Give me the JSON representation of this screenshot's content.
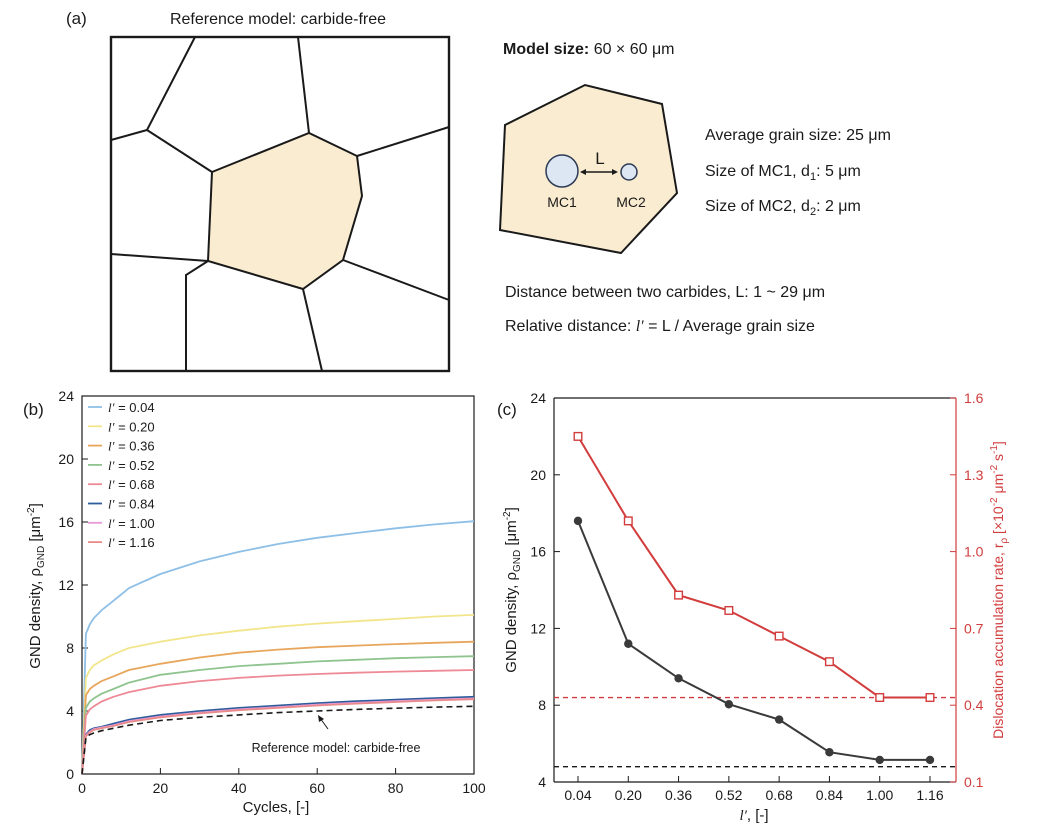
{
  "panel_a": {
    "label": "(a)",
    "caption": "Reference model: carbide-free",
    "model_size_bold": "Model size:",
    "model_size_value": "60 × 60 μm",
    "L_label": "L",
    "mc1": "MC1",
    "mc2": "MC2",
    "avg_grain": "Average grain size: 25 μm",
    "mc1_size_pre": "Size of MC1, d",
    "mc1_size_sub": "1",
    "mc1_size_post": ": 5 μm",
    "mc2_size_pre": "Size of MC2, d",
    "mc2_size_sub": "2",
    "mc2_size_post": ": 2 μm",
    "distance": "Distance between two carbides, L: 1 ~ 29 μm",
    "rel_pre": "Relative distance: ",
    "rel_var": "l′",
    "rel_post": " = L / Average grain size",
    "colors": {
      "grain_fill": "#faecd0",
      "carbide_fill": "#dde6f3",
      "carbide_stroke": "#2b3a55"
    }
  },
  "chart_data": [
    {
      "type": "line",
      "panel_label": "(b)",
      "xlabel": "Cycles, [-]",
      "ylabel_pre": "GND density, ρ",
      "ylabel_sub": "GND",
      "ylabel_post": " [μm",
      "ylabel_sup": "-2",
      "ylabel_end": "]",
      "xlim": [
        0,
        100
      ],
      "ylim": [
        0,
        24
      ],
      "xticks": [
        0,
        20,
        40,
        60,
        80,
        100
      ],
      "yticks": [
        0,
        4,
        8,
        12,
        16,
        20,
        24
      ],
      "legend_var": "l′",
      "x": [
        0,
        1,
        2,
        3,
        5,
        8,
        12,
        20,
        30,
        40,
        50,
        60,
        70,
        80,
        90,
        100
      ],
      "series": [
        {
          "name": "= 0.04",
          "color": "#8ebfe6",
          "values": [
            0,
            8.9,
            9.5,
            9.9,
            10.4,
            11.0,
            11.8,
            12.7,
            13.5,
            14.1,
            14.6,
            15.0,
            15.3,
            15.6,
            15.85,
            16.05
          ]
        },
        {
          "name": "= 0.20",
          "color": "#f2e58c",
          "values": [
            0,
            6.1,
            6.6,
            6.9,
            7.2,
            7.6,
            8.0,
            8.4,
            8.8,
            9.1,
            9.35,
            9.55,
            9.7,
            9.85,
            10.0,
            10.1
          ]
        },
        {
          "name": "= 0.36",
          "color": "#e8a65c",
          "values": [
            0,
            5.0,
            5.4,
            5.6,
            5.9,
            6.2,
            6.6,
            7.0,
            7.4,
            7.7,
            7.9,
            8.05,
            8.15,
            8.25,
            8.33,
            8.4
          ]
        },
        {
          "name": "= 0.52",
          "color": "#8fc48f",
          "values": [
            0,
            4.2,
            4.6,
            4.8,
            5.1,
            5.4,
            5.8,
            6.3,
            6.6,
            6.85,
            7.0,
            7.15,
            7.25,
            7.35,
            7.42,
            7.48
          ]
        },
        {
          "name": "= 0.68",
          "color": "#ee8a96",
          "values": [
            0,
            3.7,
            4.1,
            4.3,
            4.6,
            4.9,
            5.2,
            5.6,
            5.9,
            6.1,
            6.25,
            6.35,
            6.43,
            6.5,
            6.55,
            6.6
          ]
        },
        {
          "name": "= 0.84",
          "color": "#2f5d9c",
          "values": [
            0,
            2.5,
            2.8,
            2.9,
            3.0,
            3.2,
            3.45,
            3.75,
            4.0,
            4.2,
            4.35,
            4.5,
            4.62,
            4.72,
            4.82,
            4.9
          ]
        },
        {
          "name": "= 1.00",
          "color": "#e89ad8",
          "values": [
            0,
            2.45,
            2.7,
            2.85,
            2.95,
            3.1,
            3.35,
            3.65,
            3.9,
            4.1,
            4.25,
            4.4,
            4.52,
            4.62,
            4.72,
            4.8
          ]
        },
        {
          "name": "= 1.16",
          "color": "#e98a8a",
          "values": [
            0,
            2.4,
            2.65,
            2.8,
            2.9,
            3.05,
            3.3,
            3.6,
            3.85,
            4.05,
            4.2,
            4.35,
            4.47,
            4.57,
            4.67,
            4.75
          ]
        },
        {
          "name": "Reference model: carbide-free",
          "color": "#1a1a1a",
          "dashed": true,
          "values": [
            0,
            2.3,
            2.5,
            2.6,
            2.75,
            2.9,
            3.1,
            3.4,
            3.6,
            3.75,
            3.9,
            4.0,
            4.1,
            4.18,
            4.25,
            4.3
          ]
        }
      ],
      "annotation": "Reference model: carbide-free"
    },
    {
      "type": "line",
      "panel_label": "(c)",
      "xlabel_var": "l′",
      "xlabel_post": ", [-]",
      "categories": [
        "0.04",
        "0.20",
        "0.36",
        "0.52",
        "0.68",
        "0.84",
        "1.00",
        "1.16"
      ],
      "ylim": [
        4,
        24
      ],
      "yticks": [
        4,
        8,
        12,
        16,
        20,
        24
      ],
      "ylabel_pre": "GND density, ρ",
      "ylabel_sub": "GND",
      "ylabel_post": " [μm",
      "ylabel_sup": "-2",
      "ylabel_end": "]",
      "y2lim": [
        0.1,
        1.6
      ],
      "y2ticks": [
        "0.1",
        "0.4",
        "0.7",
        "1.0",
        "1.3",
        "1.6"
      ],
      "y2label_pre": "Dislocation accumulation rate, r",
      "y2label_sub": "ρ",
      "y2label_mid": " [×10",
      "y2label_sup1": "-2",
      "y2label_mid2": " μm",
      "y2label_sup2": "-2",
      "y2label_mid3": " s",
      "y2label_sup3": "-1",
      "y2label_end": "]",
      "series": [
        {
          "name": "GND density",
          "axis": "left",
          "color": "#3a3a3a",
          "marker": "circle",
          "values": [
            17.6,
            11.2,
            9.4,
            8.05,
            7.25,
            5.55,
            5.15,
            5.15
          ]
        },
        {
          "name": "Dislocation accumulation rate",
          "axis": "right",
          "color": "#d23c3c",
          "marker": "square",
          "values": [
            1.45,
            1.12,
            0.83,
            0.77,
            0.67,
            0.57,
            0.43,
            0.43
          ]
        }
      ],
      "reference_left": 4.8,
      "reference_right": 0.43
    }
  ]
}
